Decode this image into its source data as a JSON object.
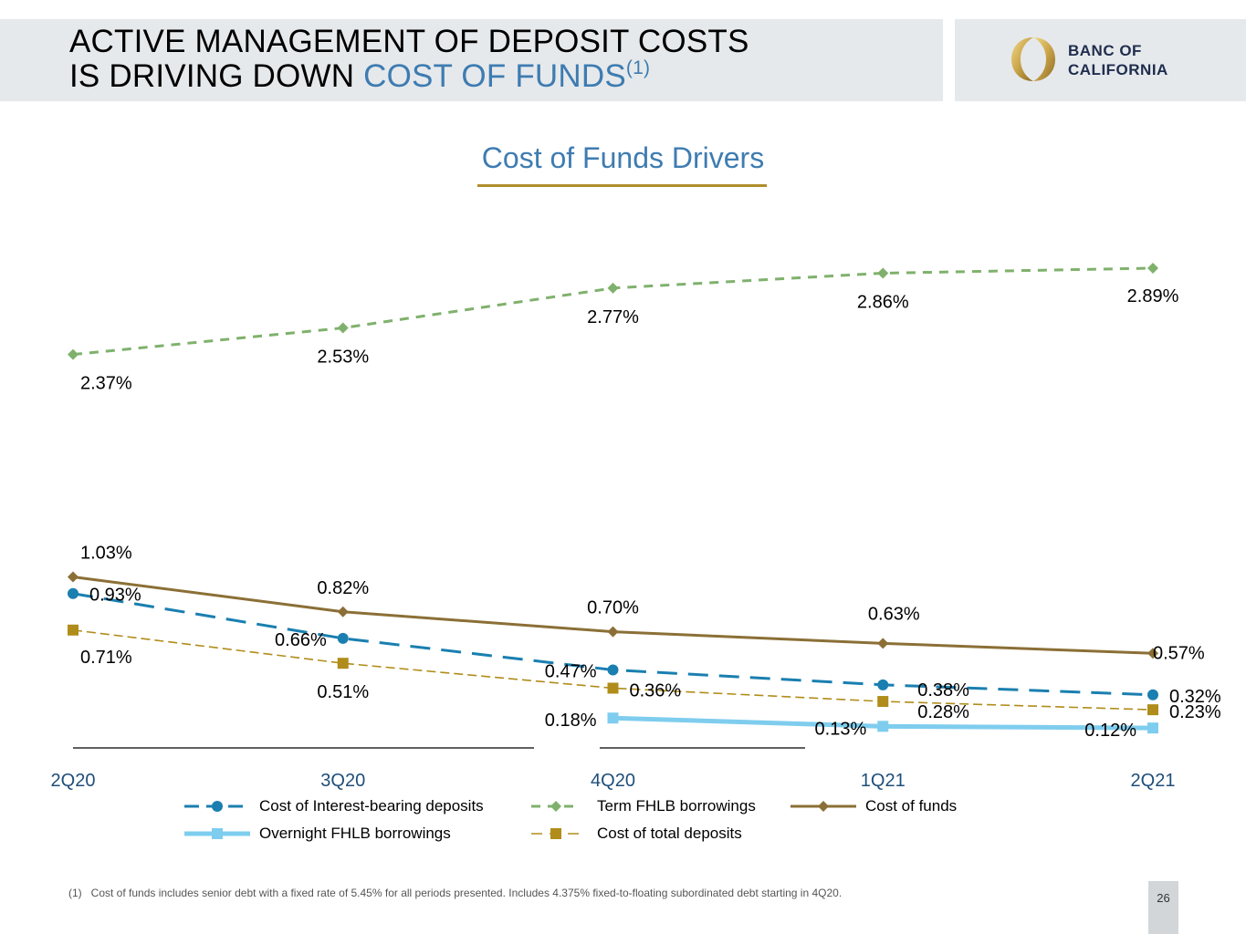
{
  "header": {
    "title_line1": "ACTIVE MANAGEMENT OF DEPOSIT COSTS",
    "title_line2_prefix": "IS DRIVING DOWN ",
    "title_line2_accent": "COST OF FUNDS",
    "title_footnote_ref": "(1)",
    "logo_line1": "BANC OF",
    "logo_line2": "CALIFORNIA"
  },
  "colors": {
    "accent_blue": "#3e7cb1",
    "gold": "#b08d2a",
    "header_gray": "#e6e9ec"
  },
  "chart_data": {
    "type": "line",
    "title": "Cost of Funds Drivers",
    "categories": [
      "2Q20",
      "3Q20",
      "4Q20",
      "1Q21",
      "2Q21"
    ],
    "ylim": [
      0,
      3.1
    ],
    "grid": false,
    "legend_position": "bottom",
    "series": [
      {
        "key": "term",
        "name": "Term FHLB borrowings",
        "values": [
          2.37,
          2.53,
          2.77,
          2.86,
          2.89
        ],
        "labels": [
          "2.37%",
          "2.53%",
          "2.77%",
          "2.86%",
          "2.89%"
        ],
        "color": "#7fb16c",
        "style": "dashed",
        "marker": "diamond"
      },
      {
        "key": "cof",
        "name": "Cost of funds",
        "values": [
          1.03,
          0.82,
          0.7,
          0.63,
          0.57
        ],
        "labels": [
          "1.03%",
          "0.82%",
          "0.70%",
          "0.63%",
          "0.57%"
        ],
        "color": "#8b6f36",
        "style": "solid",
        "marker": "diamond"
      },
      {
        "key": "ibd",
        "name": "Cost of Interest-bearing deposits",
        "values": [
          0.93,
          0.66,
          0.47,
          0.38,
          0.32
        ],
        "labels": [
          "0.93%",
          "0.66%",
          "0.47%",
          "0.38%",
          "0.32%"
        ],
        "color": "#1a7fb0",
        "style": "longdash",
        "marker": "circle"
      },
      {
        "key": "ctd",
        "name": "Cost of total deposits",
        "values": [
          0.71,
          0.51,
          0.36,
          0.28,
          0.23
        ],
        "labels": [
          "0.71%",
          "0.51%",
          "0.36%",
          "0.28%",
          "0.23%"
        ],
        "color": "#b08d1a",
        "style": "thindash",
        "marker": "square"
      },
      {
        "key": "ovn",
        "name": "Overnight FHLB borrowings",
        "values": [
          null,
          null,
          0.18,
          0.13,
          0.12
        ],
        "labels": [
          null,
          null,
          "0.18%",
          "0.13%",
          "0.12%"
        ],
        "color": "#7fcdee",
        "style": "thick",
        "marker": "square"
      }
    ]
  },
  "footnote": {
    "number": "(1)",
    "text": "Cost of funds includes senior debt with a fixed rate of 5.45% for all periods presented. Includes 4.375% fixed-to-floating subordinated debt starting in 4Q20."
  },
  "page_number": "26"
}
